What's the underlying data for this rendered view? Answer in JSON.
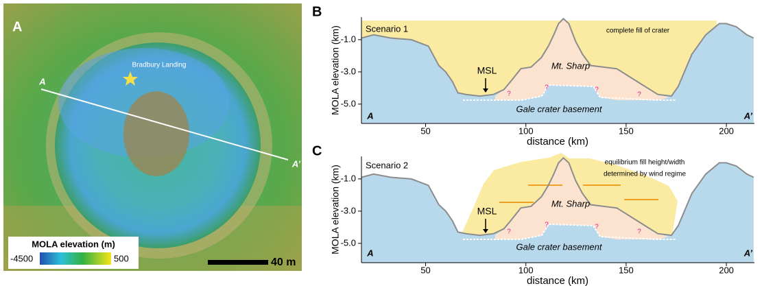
{
  "map": {
    "panel_label": "A",
    "landing_label": "Bradbury Landing",
    "transect_start": "A",
    "transect_end": "A’",
    "colorbar_title": "MOLA elevation (m)",
    "colorbar_min": -4500,
    "colorbar_max": 500,
    "scale_bar": "40 m"
  },
  "chart_data": [
    {
      "type": "line",
      "panel_label": "B",
      "ylabel": "MOLA elevation (km)",
      "xlabel": "distance (km)",
      "annotations": [
        "Scenario 1",
        "complete fill of crater",
        "MSL",
        "Mt. Sharp",
        "Gale crater basement",
        "A",
        "A’",
        "?",
        "?",
        "?",
        "?"
      ],
      "x": [
        18,
        24.1,
        32.7,
        42.9,
        51.4,
        56.6,
        60,
        63.4,
        66.1,
        70.2,
        77,
        83.9,
        89,
        92.4,
        97.5,
        102.6,
        107.8,
        111.2,
        113.9,
        116.3,
        118.7,
        121.4,
        124.8,
        128.2,
        132.3,
        138.5,
        145.3,
        155.5,
        165.8,
        172.6,
        176,
        182.8,
        189.7,
        196.5,
        199.9,
        205,
        210.2,
        213.6
      ],
      "values": [
        -0.9,
        -0.7,
        -0.9,
        -1,
        -1.4,
        -2.6,
        -3,
        -3.6,
        -4.3,
        -4.4,
        -4.5,
        -4.4,
        -4.1,
        -3.6,
        -2.8,
        -2.7,
        -2.1,
        -1.4,
        -0.7,
        0,
        0.3,
        0,
        -1.1,
        -1.9,
        -2.6,
        -2.7,
        -2.8,
        -3.6,
        -4.4,
        -4.5,
        -3.9,
        -1.9,
        -0.7,
        0,
        0,
        -0.2,
        -0.7,
        -0.9
      ],
      "color": "#8c8c8c",
      "xlim": [
        18,
        214
      ],
      "ylim": [
        -6.2,
        0.4
      ],
      "xticks": [
        50,
        100,
        150,
        200
      ],
      "yticks": [
        {
          "value": -1,
          "label": "-1.0"
        },
        {
          "value": -3,
          "label": "-3.0"
        },
        {
          "value": -5,
          "label": "-5.0"
        }
      ]
    },
    {
      "type": "line",
      "panel_label": "C",
      "ylabel": "MOLA elevation (km)",
      "xlabel": "distance (km)",
      "annotations": [
        "Scenario 2",
        "equilibrium fill height/width",
        "determined by wind regime",
        "MSL",
        "Mt. Sharp",
        "Gale crater basement",
        "A",
        "A’",
        "?",
        "?",
        "?",
        "?"
      ],
      "x": [
        18,
        24.1,
        32.7,
        42.9,
        51.4,
        56.6,
        60,
        63.4,
        66.1,
        70.2,
        77,
        83.9,
        89,
        92.4,
        97.5,
        102.6,
        107.8,
        111.2,
        113.9,
        116.3,
        118.7,
        121.4,
        124.8,
        128.2,
        132.3,
        138.5,
        145.3,
        155.5,
        165.8,
        172.6,
        176,
        182.8,
        189.7,
        196.5,
        199.9,
        205,
        210.2,
        213.6
      ],
      "values": [
        -0.9,
        -0.7,
        -0.9,
        -1,
        -1.4,
        -2.6,
        -3,
        -3.6,
        -4.3,
        -4.4,
        -4.5,
        -4.4,
        -4.1,
        -3.6,
        -2.8,
        -2.7,
        -2.1,
        -1.4,
        -0.7,
        0,
        0.3,
        0,
        -1.1,
        -1.9,
        -2.6,
        -2.7,
        -2.8,
        -3.6,
        -4.4,
        -4.5,
        -3.9,
        -1.9,
        -0.7,
        0,
        0,
        -0.2,
        -0.7,
        -0.9
      ],
      "color": "#8c8c8c",
      "xlim": [
        18,
        214
      ],
      "ylim": [
        -6.2,
        0.4
      ],
      "xticks": [
        50,
        100,
        150,
        200
      ],
      "yticks": [
        {
          "value": -1,
          "label": "-1.0"
        },
        {
          "value": -3,
          "label": "-3.0"
        },
        {
          "value": -5,
          "label": "-5.0"
        }
      ]
    }
  ]
}
